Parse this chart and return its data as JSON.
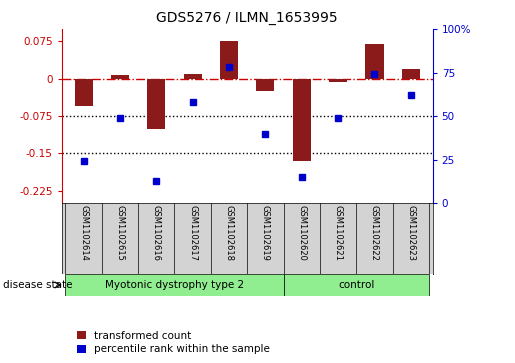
{
  "title": "GDS5276 / ILMN_1653995",
  "samples": [
    "GSM1102614",
    "GSM1102615",
    "GSM1102616",
    "GSM1102617",
    "GSM1102618",
    "GSM1102619",
    "GSM1102620",
    "GSM1102621",
    "GSM1102622",
    "GSM1102623"
  ],
  "transformed_count": [
    -0.055,
    0.008,
    -0.1,
    0.01,
    0.075,
    -0.025,
    -0.165,
    -0.007,
    0.07,
    0.02
  ],
  "percentile_rank": [
    24,
    49,
    13,
    58,
    78,
    40,
    15,
    49,
    74,
    62
  ],
  "disease_groups": [
    {
      "label": "Myotonic dystrophy type 2",
      "start": 0,
      "end": 6,
      "color": "#90EE90"
    },
    {
      "label": "control",
      "start": 6,
      "end": 10,
      "color": "#90EE90"
    }
  ],
  "ylim_left": [
    -0.25,
    0.1
  ],
  "ylim_right": [
    0,
    100
  ],
  "yticks_left": [
    0.075,
    0,
    -0.075,
    -0.15,
    -0.225
  ],
  "yticks_right": [
    100,
    75,
    50,
    25,
    0
  ],
  "bar_color": "#8B1A1A",
  "dot_color": "#0000CD",
  "hline_color": "#CC0000",
  "dotted_line_color": "#000000",
  "legend_labels": [
    "transformed count",
    "percentile rank within the sample"
  ],
  "disease_state_label": "disease state",
  "bar_width": 0.5,
  "label_bg": "#D3D3D3",
  "fig_bg": "#FFFFFF"
}
